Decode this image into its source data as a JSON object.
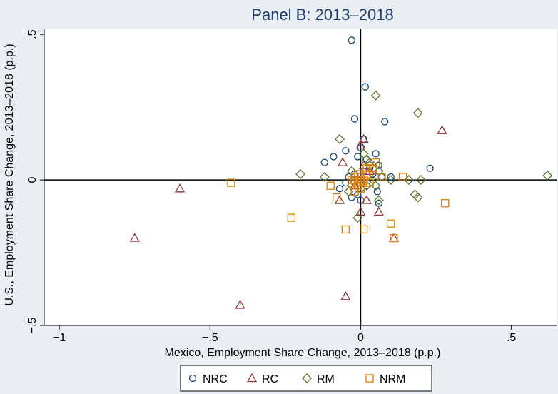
{
  "chart_data": {
    "type": "scatter",
    "title": "Panel B: 2013–2018",
    "xlabel": "Mexico, Employment Share Change, 2013–2018 (p.p.)",
    "ylabel": "U.S., Employment Share Change, 2013–2018 (p.p.)",
    "xlim": [
      -1.05,
      0.65
    ],
    "ylim": [
      -0.5,
      0.52
    ],
    "xticks": [
      -1,
      -0.5,
      0,
      0.5
    ],
    "xtick_labels": [
      "−1",
      "−.5",
      "0",
      ".5"
    ],
    "yticks": [
      -0.5,
      0,
      0.5
    ],
    "ytick_labels": [
      "−.5",
      "0",
      ".5"
    ],
    "grid": false,
    "reference_lines": {
      "x": 0,
      "y": 0
    },
    "legend_position": "bottom",
    "series": [
      {
        "name": "NRC",
        "marker": "circle",
        "color": "#1a476f",
        "points": [
          [
            -0.03,
            0.48
          ],
          [
            0.015,
            0.32
          ],
          [
            -0.02,
            0.21
          ],
          [
            0.08,
            0.2
          ],
          [
            0.01,
            0.14
          ],
          [
            -0.05,
            0.1
          ],
          [
            0.05,
            0.09
          ],
          [
            0.0,
            0.11
          ],
          [
            -0.09,
            0.08
          ],
          [
            -0.01,
            0.08
          ],
          [
            0.02,
            0.07
          ],
          [
            0.06,
            0.05
          ],
          [
            -0.12,
            0.06
          ],
          [
            0.03,
            0.04
          ],
          [
            0.01,
            0.03
          ],
          [
            0.23,
            0.04
          ],
          [
            0.1,
            0.01
          ],
          [
            0.07,
            0.01
          ],
          [
            -0.02,
            0.02
          ],
          [
            0.0,
            0.0
          ],
          [
            -0.05,
            -0.01
          ],
          [
            0.02,
            -0.02
          ],
          [
            -0.07,
            -0.03
          ],
          [
            0.055,
            -0.04
          ],
          [
            -0.01,
            -0.05
          ],
          [
            0.06,
            -0.08
          ],
          [
            -0.03,
            -0.06
          ],
          [
            0.0,
            -0.07
          ],
          [
            0.04,
            0.02
          ],
          [
            -0.04,
            0.01
          ]
        ]
      },
      {
        "name": "RC",
        "marker": "triangle",
        "color": "#90353b",
        "points": [
          [
            -0.75,
            -0.2
          ],
          [
            -0.6,
            -0.03
          ],
          [
            -0.4,
            -0.43
          ],
          [
            -0.05,
            -0.4
          ],
          [
            0.11,
            -0.2
          ],
          [
            0.27,
            0.17
          ],
          [
            0.01,
            0.14
          ],
          [
            0.0,
            0.12
          ],
          [
            0.06,
            -0.11
          ],
          [
            0.0,
            -0.11
          ],
          [
            -0.07,
            -0.07
          ],
          [
            0.02,
            -0.07
          ],
          [
            -0.06,
            0.06
          ],
          [
            0.03,
            0.03
          ],
          [
            -0.02,
            -0.02
          ],
          [
            0.01,
            0.05
          ]
        ]
      },
      {
        "name": "RM",
        "marker": "diamond",
        "color": "#55752f",
        "points": [
          [
            0.05,
            0.29
          ],
          [
            0.19,
            0.23
          ],
          [
            -0.07,
            0.14
          ],
          [
            0.62,
            0.015
          ],
          [
            -0.2,
            0.02
          ],
          [
            -0.12,
            0.01
          ],
          [
            0.16,
            0.0
          ],
          [
            0.2,
            0.0
          ],
          [
            0.18,
            -0.05
          ],
          [
            0.19,
            -0.06
          ],
          [
            0.06,
            -0.07
          ],
          [
            -0.01,
            -0.13
          ],
          [
            0.01,
            0.09
          ],
          [
            0.02,
            0.07
          ],
          [
            0.03,
            0.05
          ],
          [
            0.06,
            0.03
          ],
          [
            -0.03,
            0.03
          ],
          [
            0.04,
            0.0
          ],
          [
            0.02,
            -0.02
          ],
          [
            -0.02,
            -0.01
          ],
          [
            0.0,
            -0.03
          ],
          [
            0.05,
            -0.02
          ],
          [
            0.1,
            0.0
          ],
          [
            -0.04,
            -0.04
          ],
          [
            0.03,
            0.06
          ]
        ]
      },
      {
        "name": "NRM",
        "marker": "square",
        "color": "#e37e00",
        "points": [
          [
            -0.43,
            -0.01
          ],
          [
            -0.23,
            -0.13
          ],
          [
            -0.08,
            -0.06
          ],
          [
            -0.05,
            -0.17
          ],
          [
            0.01,
            -0.17
          ],
          [
            0.1,
            -0.15
          ],
          [
            0.11,
            -0.2
          ],
          [
            0.28,
            -0.08
          ],
          [
            0.14,
            0.01
          ],
          [
            0.05,
            0.06
          ],
          [
            0.04,
            0.04
          ],
          [
            0.02,
            0.02
          ],
          [
            -0.02,
            0.0
          ],
          [
            -0.03,
            -0.01
          ],
          [
            0.0,
            0.01
          ],
          [
            -0.01,
            -0.02
          ],
          [
            0.01,
            -0.01
          ],
          [
            0.0,
            -0.03
          ],
          [
            -0.03,
            0.0
          ],
          [
            0.03,
            -0.01
          ],
          [
            -0.1,
            -0.02
          ],
          [
            0.07,
            0.01
          ],
          [
            -0.02,
            -0.04
          ],
          [
            0.02,
            0.04
          ],
          [
            0.0,
            0.0
          ],
          [
            -0.01,
            0.02
          ],
          [
            0.01,
            0.0
          ],
          [
            -0.02,
            0.01
          ]
        ]
      }
    ]
  },
  "legend": {
    "items": [
      {
        "label": "NRC"
      },
      {
        "label": "RC"
      },
      {
        "label": "RM"
      },
      {
        "label": "NRM"
      }
    ]
  }
}
